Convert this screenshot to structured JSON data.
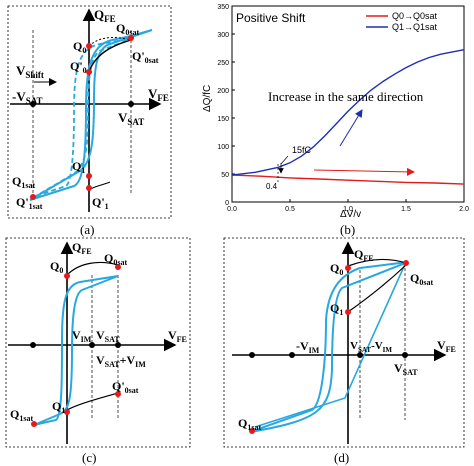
{
  "panel_a": {
    "caption": "(a)",
    "q_axis": "Q",
    "q_axis_sub": "FE",
    "v_axis": "V",
    "v_axis_sub": "FE",
    "vsat_neg": "-V",
    "vsat_neg_sub": "SAT",
    "vsat_pos": "V",
    "vsat_pos_sub": "SAT",
    "vshift": "V",
    "vshift_sub": "Shift",
    "q0sat": "Q",
    "q0sat_sub": "0sat",
    "q0": "Q",
    "q0_sub": "0",
    "q0p": "Q'",
    "q0p_sub": "0",
    "q0psat": "Q'",
    "q0psat_sub": "0sat",
    "q1": "Q",
    "q1_sub": "1",
    "q1p": "Q'",
    "q1p_sub": "1",
    "q1sat": "Q",
    "q1sat_sub": "1sat",
    "q1psat": "Q'",
    "q1psat_sub": "1sat"
  },
  "panel_b": {
    "caption": "(b)",
    "annotation_title": "Positive Shift",
    "annotation_increase": "Increase in the same direction",
    "annotation_15fc": "15fC",
    "annotation_04": "0.4",
    "colors": {
      "red": "#e41a1c",
      "blue": "#1f2fb3"
    }
  },
  "chart_data": {
    "type": "line",
    "xlabel": "ΔV/v",
    "ylabel": "ΔQ/fC",
    "xlim": [
      0,
      2.0
    ],
    "ylim": [
      0,
      350
    ],
    "xticks": [
      "0.0",
      "0.5",
      "1.0",
      "1.5",
      "2.0"
    ],
    "yticks": [
      "0",
      "50",
      "100",
      "150",
      "200",
      "250",
      "300",
      "350"
    ],
    "legend_position": "top-right",
    "series": [
      {
        "name": "Q0→Q0sat",
        "color": "#e41a1c",
        "x": [
          0,
          0.25,
          0.5,
          0.75,
          1.0,
          1.25,
          1.5,
          1.75,
          2.0
        ],
        "y": [
          48,
          46,
          43,
          41,
          39,
          37,
          35,
          34,
          32
        ]
      },
      {
        "name": "Q1→Q1sat",
        "color": "#1f2fb3",
        "x": [
          0,
          0.2,
          0.4,
          0.5,
          0.6,
          0.7,
          0.8,
          0.9,
          1.0,
          1.1,
          1.2,
          1.3,
          1.4,
          1.5,
          1.6,
          1.7,
          1.8,
          1.9,
          2.0
        ],
        "y": [
          48,
          53,
          62,
          70,
          82,
          98,
          118,
          140,
          162,
          182,
          200,
          215,
          228,
          240,
          250,
          258,
          264,
          268,
          272
        ]
      }
    ]
  },
  "panel_c": {
    "caption": "(c)",
    "q_axis": "Q",
    "q_axis_sub": "FE",
    "v_axis": "V",
    "v_axis_sub": "FE",
    "q0": "Q",
    "q0_sub": "0",
    "q0sat": "Q",
    "q0sat_sub": "0sat",
    "vim": "V",
    "vim_sub": "IM",
    "vsat": "V",
    "vsat_sub": "SAT",
    "vsatvim": "V",
    "vsatvim_sub1": "SAT",
    "vsatvim_plus": "+V",
    "vsatvim_sub2": "IM",
    "q1": "Q",
    "q1_sub": "1",
    "q0psat": "Q'",
    "q0psat_sub": "0sat",
    "q1sat": "Q",
    "q1sat_sub": "1sat"
  },
  "panel_d": {
    "caption": "(d)",
    "q_axis": "Q",
    "q_axis_sub": "FE",
    "v_axis": "V",
    "v_axis_sub": "FE",
    "q0": "Q",
    "q0_sub": "0",
    "q0sat": "Q",
    "q0sat_sub": "0sat",
    "q1": "Q",
    "q1_sub": "1",
    "vim": "-V",
    "vim_sub": "IM",
    "vsatvim": "V",
    "vsatvim_sub1": "SAT",
    "vsatvim_minus": "-V",
    "vsatvim_sub2": "IM",
    "vsat": "V",
    "vsat_sub": "SAT",
    "q1sat": "Q",
    "q1sat_sub": "1sat"
  }
}
